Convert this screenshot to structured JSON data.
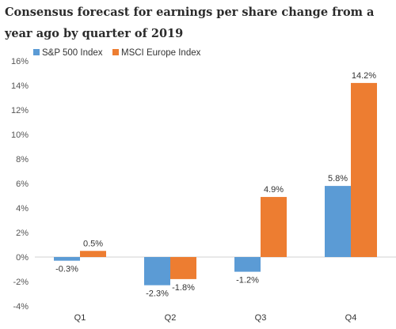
{
  "title": "Consensus forecast for earnings per share change from a year ago by quarter of 2019",
  "chart_data": {
    "type": "bar",
    "title": "Consensus forecast for earnings per share change from a year ago by quarter of 2019",
    "categories": [
      "Q1",
      "Q2",
      "Q3",
      "Q4"
    ],
    "series": [
      {
        "name": "S&P 500 Index",
        "color": "#5b9bd5",
        "values": [
          -0.3,
          -2.3,
          -1.2,
          5.8
        ],
        "labels": [
          "-0.3%",
          "-2.3%",
          "-1.2%",
          "5.8%"
        ]
      },
      {
        "name": "MSCI Europe Index",
        "color": "#ed7d31",
        "values": [
          0.5,
          -1.8,
          4.9,
          14.2
        ],
        "labels": [
          "0.5%",
          "-1.8%",
          "4.9%",
          "14.2%"
        ]
      }
    ],
    "ylim": [
      -4,
      16
    ],
    "yticks": [
      -4,
      -2,
      0,
      2,
      4,
      6,
      8,
      10,
      12,
      14,
      16
    ],
    "ytick_labels": [
      "-4%",
      "-2%",
      "0%",
      "2%",
      "4%",
      "6%",
      "8%",
      "10%",
      "12%",
      "14%",
      "16%"
    ],
    "xlabel": "",
    "ylabel": "",
    "grid": false,
    "legend": "top-left"
  }
}
